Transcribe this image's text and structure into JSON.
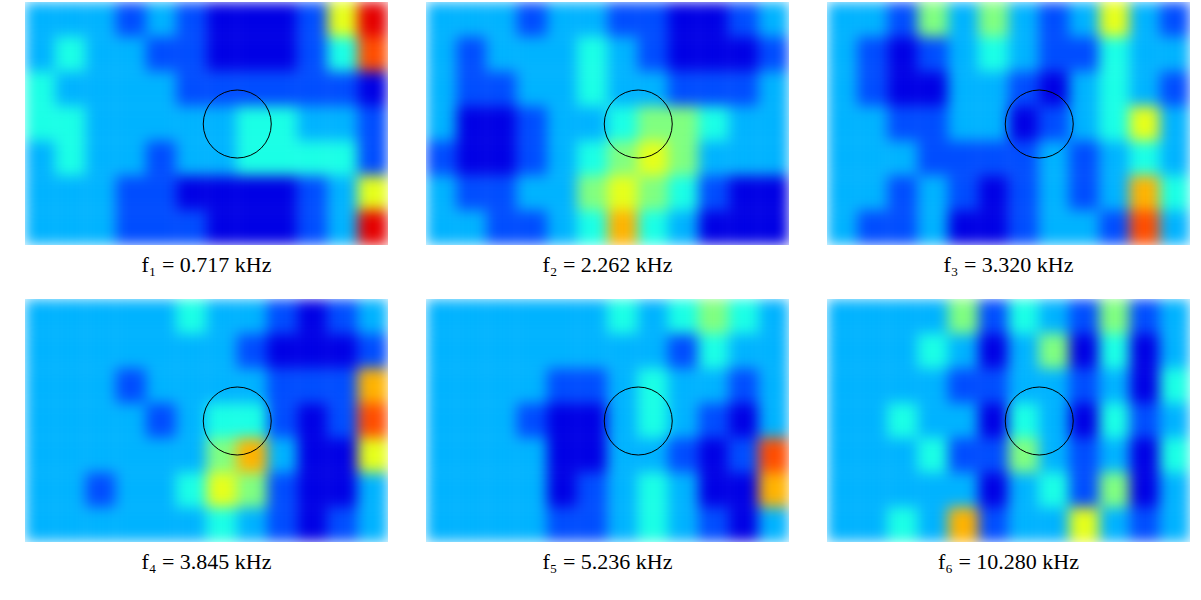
{
  "chart_data": [
    {
      "type": "heatmap",
      "title": "f₁ = 0.717 kHz",
      "tick_labels": false,
      "value_range": [
        0,
        10
      ],
      "circle": {
        "cx": 7.0,
        "cy": 3.5
      },
      "cells": [
        [
          3,
          3,
          3,
          2,
          3,
          2,
          1,
          1,
          1,
          2,
          6,
          9
        ],
        [
          3,
          4,
          3,
          3,
          2,
          2,
          1,
          1,
          1,
          2,
          4,
          8
        ],
        [
          4,
          3,
          3,
          3,
          3,
          2,
          2,
          2,
          2,
          2,
          2,
          1
        ],
        [
          4,
          4,
          3,
          3,
          3,
          3,
          3,
          4,
          4,
          3,
          3,
          2
        ],
        [
          3,
          4,
          3,
          3,
          2,
          3,
          3,
          4,
          4,
          4,
          4,
          2
        ],
        [
          3,
          3,
          3,
          2,
          2,
          1,
          1,
          1,
          1,
          2,
          3,
          6
        ],
        [
          3,
          3,
          3,
          2,
          2,
          2,
          1,
          1,
          1,
          2,
          3,
          9
        ]
      ]
    },
    {
      "type": "heatmap",
      "title": "f₂ = 2.262 kHz",
      "tick_labels": false,
      "value_range": [
        0,
        10
      ],
      "circle": {
        "cx": 7.0,
        "cy": 3.5
      },
      "cells": [
        [
          3,
          3,
          3,
          2,
          3,
          3,
          2,
          2,
          1,
          1,
          2,
          3
        ],
        [
          3,
          2,
          3,
          3,
          3,
          4,
          3,
          2,
          1,
          1,
          1,
          2
        ],
        [
          3,
          2,
          2,
          3,
          3,
          4,
          3,
          3,
          2,
          2,
          2,
          3
        ],
        [
          3,
          1,
          1,
          2,
          3,
          3,
          4,
          5,
          5,
          4,
          3,
          3
        ],
        [
          2,
          1,
          1,
          2,
          3,
          4,
          5,
          6,
          5,
          3,
          3,
          3
        ],
        [
          3,
          2,
          2,
          3,
          3,
          5,
          6,
          5,
          4,
          2,
          1,
          1
        ],
        [
          3,
          3,
          2,
          2,
          3,
          4,
          7,
          4,
          3,
          1,
          1,
          1
        ]
      ]
    },
    {
      "type": "heatmap",
      "title": "f₃ = 3.320 kHz",
      "tick_labels": false,
      "value_range": [
        0,
        10
      ],
      "circle": {
        "cx": 7.0,
        "cy": 3.5
      },
      "cells": [
        [
          3,
          3,
          2,
          5,
          3,
          5,
          3,
          2,
          3,
          6,
          3,
          2
        ],
        [
          3,
          2,
          1,
          2,
          3,
          4,
          3,
          2,
          2,
          4,
          3,
          3
        ],
        [
          3,
          2,
          1,
          1,
          3,
          3,
          2,
          1,
          3,
          4,
          3,
          2
        ],
        [
          3,
          3,
          2,
          2,
          3,
          3,
          1,
          2,
          3,
          4,
          6,
          3
        ],
        [
          3,
          3,
          3,
          2,
          2,
          2,
          2,
          3,
          2,
          3,
          4,
          3
        ],
        [
          3,
          3,
          2,
          3,
          2,
          1,
          2,
          3,
          2,
          3,
          7,
          4
        ],
        [
          3,
          2,
          2,
          3,
          1,
          1,
          2,
          3,
          3,
          2,
          8,
          3
        ]
      ]
    },
    {
      "type": "heatmap",
      "title": "f₄ = 3.845 kHz",
      "tick_labels": false,
      "value_range": [
        0,
        10
      ],
      "circle": {
        "cx": 7.0,
        "cy": 3.5
      },
      "cells": [
        [
          3,
          3,
          3,
          3,
          3,
          4,
          3,
          3,
          2,
          1,
          2,
          3
        ],
        [
          3,
          3,
          3,
          3,
          3,
          3,
          3,
          2,
          1,
          1,
          1,
          2
        ],
        [
          3,
          3,
          3,
          2,
          3,
          3,
          3,
          3,
          2,
          2,
          2,
          7
        ],
        [
          3,
          3,
          3,
          3,
          2,
          3,
          4,
          4,
          2,
          1,
          2,
          8
        ],
        [
          3,
          3,
          3,
          3,
          3,
          3,
          5,
          7,
          3,
          1,
          1,
          6
        ],
        [
          3,
          3,
          2,
          3,
          3,
          4,
          6,
          5,
          2,
          1,
          1,
          3
        ],
        [
          3,
          3,
          3,
          3,
          3,
          3,
          4,
          3,
          2,
          1,
          2,
          3
        ]
      ]
    },
    {
      "type": "heatmap",
      "title": "f₅ = 5.236 kHz",
      "tick_labels": false,
      "value_range": [
        0,
        10
      ],
      "circle": {
        "cx": 7.0,
        "cy": 3.5
      },
      "cells": [
        [
          3,
          3,
          3,
          3,
          3,
          3,
          4,
          3,
          4,
          5,
          4,
          3
        ],
        [
          3,
          3,
          3,
          3,
          3,
          3,
          3,
          3,
          2,
          4,
          3,
          3
        ],
        [
          3,
          3,
          3,
          3,
          2,
          2,
          3,
          4,
          3,
          3,
          2,
          3
        ],
        [
          3,
          3,
          3,
          2,
          1,
          1,
          3,
          4,
          3,
          2,
          1,
          3
        ],
        [
          3,
          3,
          3,
          3,
          1,
          1,
          3,
          3,
          2,
          1,
          2,
          8
        ],
        [
          3,
          3,
          3,
          3,
          1,
          2,
          3,
          4,
          3,
          1,
          1,
          7
        ],
        [
          3,
          3,
          3,
          3,
          2,
          2,
          3,
          4,
          3,
          2,
          1,
          3
        ]
      ]
    },
    {
      "type": "heatmap",
      "title": "f₆ = 10.280 kHz",
      "tick_labels": false,
      "value_range": [
        0,
        10
      ],
      "circle": {
        "cx": 7.0,
        "cy": 3.5
      },
      "cells": [
        [
          3,
          3,
          3,
          3,
          5,
          2,
          4,
          3,
          2,
          5,
          2,
          3
        ],
        [
          3,
          3,
          3,
          4,
          3,
          1,
          3,
          5,
          1,
          4,
          1,
          3
        ],
        [
          3,
          3,
          3,
          3,
          2,
          2,
          3,
          3,
          2,
          3,
          1,
          4
        ],
        [
          3,
          3,
          4,
          3,
          3,
          1,
          4,
          3,
          1,
          4,
          2,
          3
        ],
        [
          3,
          3,
          3,
          4,
          2,
          2,
          5,
          3,
          2,
          3,
          1,
          4
        ],
        [
          3,
          3,
          3,
          3,
          3,
          1,
          3,
          4,
          2,
          5,
          1,
          3
        ],
        [
          3,
          3,
          4,
          3,
          7,
          2,
          3,
          3,
          6,
          3,
          2,
          3
        ]
      ]
    }
  ]
}
